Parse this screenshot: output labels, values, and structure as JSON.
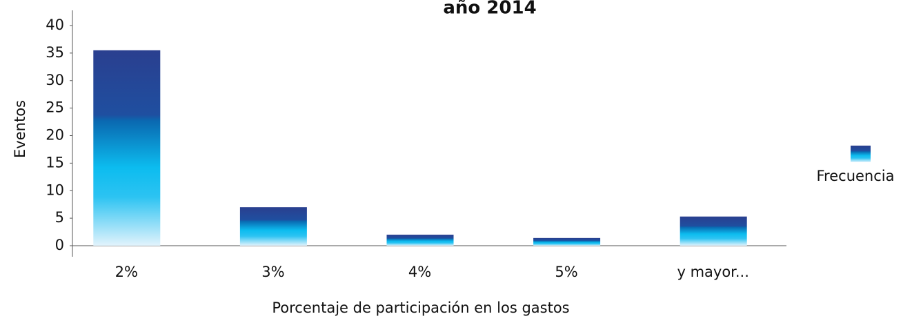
{
  "chart_data": {
    "type": "bar",
    "title": "año 2014",
    "x_label": "Porcentaje de participación en los gastos",
    "y_label": "Eventos",
    "categories": [
      "2%",
      "3%",
      "4%",
      "5%",
      "y mayor..."
    ],
    "series": [
      {
        "name": "Frecuencia",
        "color": "#2a3f8f",
        "values": [
          35.5,
          7,
          2,
          1.4,
          5.3
        ]
      }
    ],
    "ylim": [
      0,
      40
    ],
    "yticks": [
      0,
      5,
      10,
      15,
      20,
      25,
      30,
      35,
      40
    ],
    "legend": "right"
  }
}
